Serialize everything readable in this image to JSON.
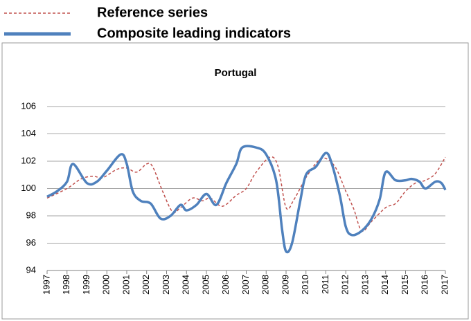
{
  "chart_data": {
    "type": "line",
    "title": "Portugal",
    "legend": "top",
    "xlim": [
      1997,
      2017
    ],
    "xticks": [
      1997,
      1998,
      1999,
      2000,
      2001,
      2002,
      2003,
      2004,
      2005,
      2006,
      2007,
      2008,
      2009,
      2010,
      2011,
      2012,
      2013,
      2014,
      2015,
      2016,
      2017
    ],
    "ylim": [
      94,
      106
    ],
    "yticks": [
      94,
      96,
      98,
      100,
      102,
      104,
      106
    ],
    "grid": true,
    "series": [
      {
        "name": "Reference series",
        "color": "#c0504d",
        "dashed": true,
        "x": [
          1997,
          1998,
          1998.7,
          1999.3,
          1999.8,
          2000.5,
          2001,
          2001.5,
          2002,
          2002.3,
          2002.8,
          2003.3,
          2003.7,
          2004.3,
          2004.8,
          2005.2,
          2005.8,
          2006.5,
          2007,
          2007.5,
          2008.2,
          2008.6,
          2009,
          2009.4,
          2010,
          2010.6,
          2011,
          2011.5,
          2012,
          2012.4,
          2012.8,
          2013.3,
          2014,
          2014.5,
          2015,
          2015.5,
          2016,
          2016.5,
          2017
        ],
        "values": [
          99.3,
          100,
          100.7,
          100.9,
          100.8,
          101.4,
          101.5,
          101.2,
          101.8,
          101.6,
          99.8,
          98.3,
          98.6,
          99.3,
          99.1,
          99.3,
          98.7,
          99.5,
          100,
          101.2,
          102.3,
          101.6,
          98.6,
          99.2,
          100.8,
          102,
          102.2,
          101.5,
          99.8,
          98.5,
          96.9,
          97.6,
          98.6,
          98.9,
          99.8,
          100.4,
          100.6,
          101.1,
          102.3
        ]
      },
      {
        "name": "Composite leading indicators",
        "color": "#4f81bd",
        "dashed": false,
        "x": [
          1997,
          1997.5,
          1998,
          1998.3,
          1999,
          1999.5,
          2000,
          2000.7,
          2001,
          2001.3,
          2001.7,
          2002.2,
          2002.7,
          2003.2,
          2003.7,
          2004,
          2004.5,
          2005,
          2005.5,
          2006,
          2006.5,
          2006.8,
          2007.5,
          2008,
          2008.5,
          2008.8,
          2009,
          2009.3,
          2009.7,
          2010,
          2010.5,
          2011,
          2011.3,
          2011.7,
          2012,
          2012.3,
          2012.8,
          2013.3,
          2013.7,
          2014,
          2014.5,
          2015,
          2015.3,
          2015.7,
          2016,
          2016.5,
          2016.8,
          2017
        ],
        "values": [
          99.4,
          99.8,
          100.5,
          101.8,
          100.4,
          100.5,
          101.3,
          102.5,
          101.8,
          99.8,
          99.1,
          98.9,
          97.8,
          98,
          98.8,
          98.4,
          98.8,
          99.6,
          98.8,
          100.4,
          101.8,
          103,
          103,
          102.5,
          100.6,
          97,
          95.4,
          96,
          99,
          101,
          101.6,
          102.6,
          101.8,
          99.5,
          97.2,
          96.6,
          96.9,
          97.8,
          99.2,
          101.2,
          100.6,
          100.6,
          100.7,
          100.5,
          100,
          100.5,
          100.4,
          99.9
        ]
      }
    ]
  }
}
